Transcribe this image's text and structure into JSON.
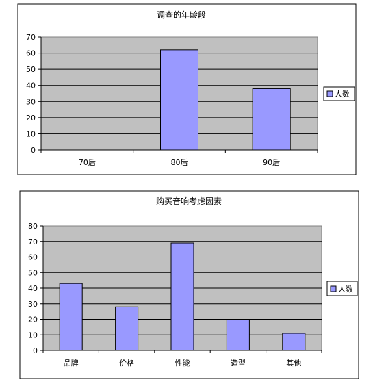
{
  "chart_data": [
    {
      "type": "bar",
      "title": "调查的年龄段",
      "categories": [
        "70后",
        "80后",
        "90后"
      ],
      "series": [
        {
          "name": "人数",
          "values": [
            0,
            62,
            38
          ]
        }
      ],
      "ylim": [
        0,
        70
      ],
      "yticks": [
        0,
        10,
        20,
        30,
        40,
        50,
        60,
        70
      ],
      "grid": true,
      "legend": "right",
      "colors": {
        "bar": "#9999ff",
        "plot_bg": "#c0c0c0",
        "outer_bg": "#ffffff"
      }
    },
    {
      "type": "bar",
      "title": "购买音响考虑因素",
      "categories": [
        "品牌",
        "价格",
        "性能",
        "造型",
        "其他"
      ],
      "series": [
        {
          "name": "人数",
          "values": [
            43,
            28,
            69,
            20,
            11
          ]
        }
      ],
      "ylim": [
        0,
        80
      ],
      "yticks": [
        0,
        10,
        20,
        30,
        40,
        50,
        60,
        70,
        80
      ],
      "grid": true,
      "legend": "right",
      "colors": {
        "bar": "#9999ff",
        "plot_bg": "#c0c0c0",
        "outer_bg": "#ffffff"
      }
    }
  ]
}
